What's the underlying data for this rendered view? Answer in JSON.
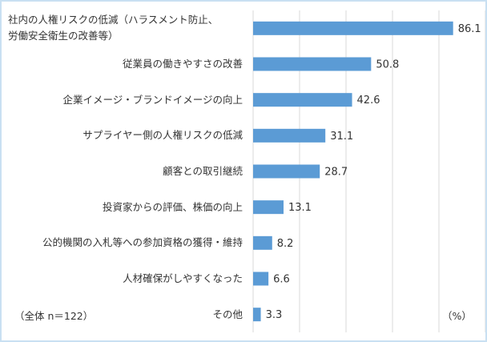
{
  "chart_data": {
    "type": "bar",
    "orientation": "horizontal",
    "categories": [
      "社内の人権リスクの低減（ハラスメント防止、\n労働安全衛生の改善等）",
      "従業員の働きやすさの改善",
      "企業イメージ・ブランドイメージの向上",
      "サプライヤー側の人権リスクの低減",
      "顧客との取引継続",
      "投資家からの評価、株価の向上",
      "公的機関の入札等への参加資格の獲得・維持",
      "人材確保がしやすくなった",
      "その他"
    ],
    "values": [
      86.1,
      50.8,
      42.6,
      31.1,
      28.7,
      13.1,
      8.2,
      6.6,
      3.3
    ],
    "color": "#5b9bd5",
    "xlim": [
      0,
      100
    ],
    "xticks": [
      0,
      20,
      40,
      60,
      80,
      100
    ],
    "grid": true,
    "annotations": [
      "（全体 n＝122）",
      "（%）"
    ]
  }
}
